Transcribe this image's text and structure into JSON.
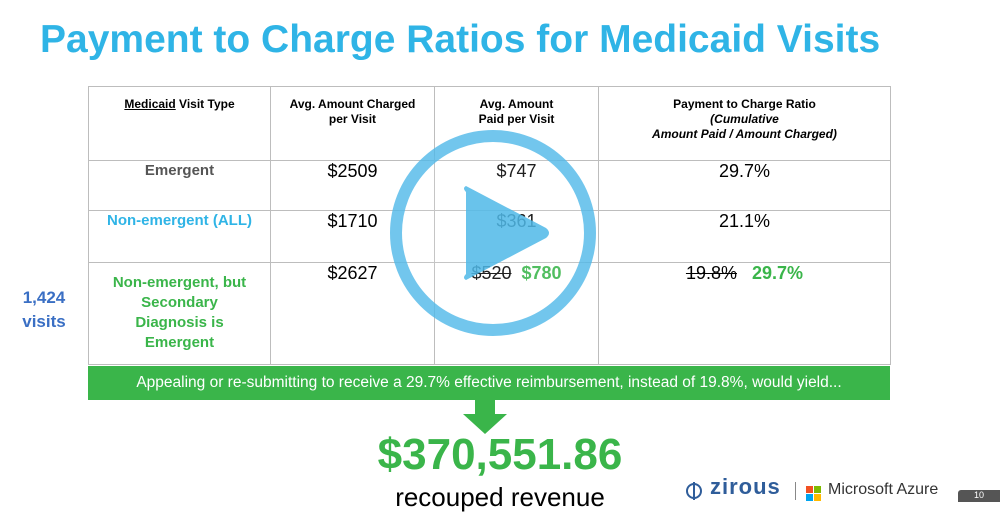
{
  "slide": {
    "title": "Payment to Charge Ratios for Medicaid Visits",
    "table": {
      "headers": {
        "visit_type_word": "Medicaid",
        "visit_type_rest": " Visit Type",
        "avg_charged_line1": "Avg. Amount Charged",
        "avg_charged_line2": "per Visit",
        "avg_paid_line1": "Avg. Amount",
        "avg_paid_line2": "Paid per Visit",
        "ratio_line1": "Payment to Charge Ratio",
        "ratio_line2": "(Cumulative",
        "ratio_line3": "Amount Paid / Amount Charged)"
      },
      "rows": [
        {
          "label": "Emergent",
          "charged": "$2509",
          "paid": "$747",
          "ratio": "29.7%"
        },
        {
          "label": "Non-emergent (ALL)",
          "charged": "$1710",
          "paid": "$361",
          "ratio": "21.1%"
        },
        {
          "label_line1": "Non-emergent, but",
          "label_line2": "Secondary",
          "label_line3": "Diagnosis is",
          "label_line4": "Emergent",
          "charged": "$2627",
          "paid_old": "$520",
          "paid_new": "$780",
          "ratio_old": "19.8%",
          "ratio_new": "29.7%"
        }
      ]
    },
    "side_note": {
      "count": "1,424",
      "unit": "visits"
    },
    "banner": "Appealing or re-submitting to receive a 29.7% effective reimbursement, instead of 19.8%, would yield...",
    "total": "$370,551.86",
    "caption": "recouped revenue",
    "footer": {
      "zirous": "zirous",
      "azure": "Microsoft Azure",
      "page": "10"
    }
  },
  "colors": {
    "title": "#2fb4e6",
    "green": "#3ab54a",
    "side_note": "#3a6fc4",
    "play_overlay": "#4fb8e8"
  },
  "icons": {
    "play": "play-button-icon",
    "arrow": "down-arrow-icon",
    "zirous_logo": "zirous-logo-icon",
    "microsoft_logo": "microsoft-logo-icon"
  }
}
